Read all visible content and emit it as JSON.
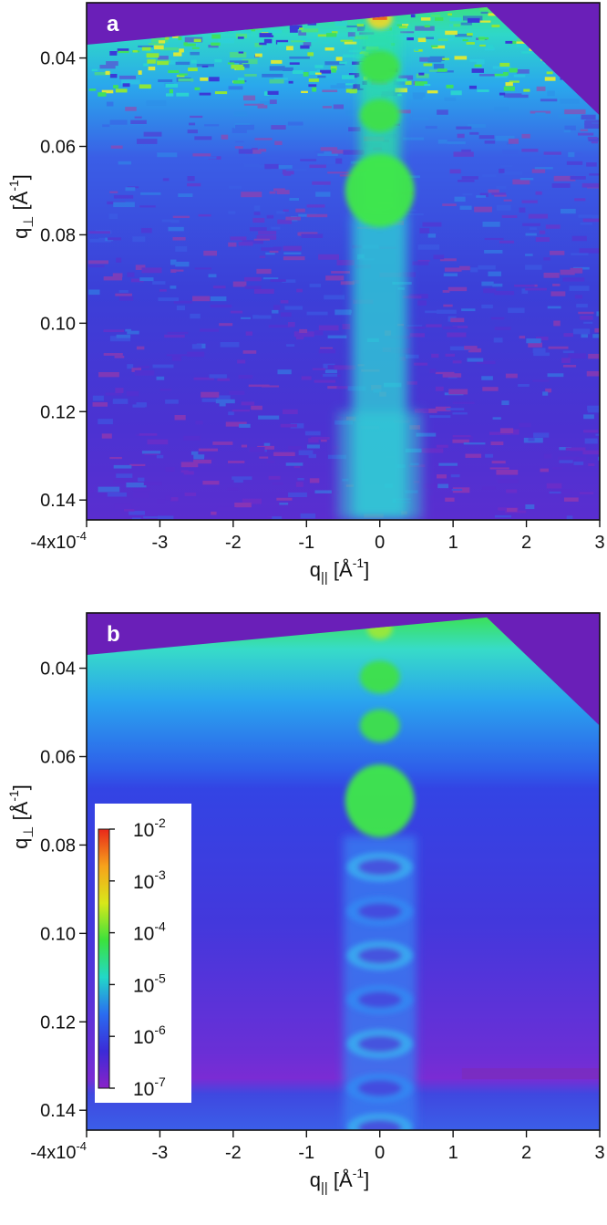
{
  "chart_data": [
    {
      "type": "heatmap",
      "panel_label": "a",
      "xlabel": "q_|| [Å^-1]",
      "ylabel": "q_⊥ [Å^-1]",
      "xlim": [
        -0.0004,
        0.0003
      ],
      "ylim": [
        0.0275,
        0.1445
      ],
      "x_ticks": [
        {
          "value": -0.0004,
          "label": "-4x10"
        },
        {
          "value": -0.0003,
          "label": "-3"
        },
        {
          "value": -0.0002,
          "label": "-2"
        },
        {
          "value": -0.0001,
          "label": "-1"
        },
        {
          "value": 0.0,
          "label": "0"
        },
        {
          "value": 0.0001,
          "label": "1"
        },
        {
          "value": 0.0002,
          "label": "2"
        },
        {
          "value": 0.0003,
          "label": "3"
        }
      ],
      "x_tick_exponent": "-4",
      "y_ticks": [
        {
          "value": 0.04,
          "label": "0.04"
        },
        {
          "value": 0.06,
          "label": "0.06"
        },
        {
          "value": 0.08,
          "label": "0.08"
        },
        {
          "value": 0.1,
          "label": "0.10"
        },
        {
          "value": 0.12,
          "label": "0.12"
        },
        {
          "value": 0.14,
          "label": "0.14"
        }
      ],
      "style": "measured",
      "rod_x": 0.0,
      "peaks_qperp": [
        0.031,
        0.042,
        0.053,
        0.07
      ]
    },
    {
      "type": "heatmap",
      "panel_label": "b",
      "xlabel": "q_|| [Å^-1]",
      "ylabel": "q_⊥ [Å^-1]",
      "xlim": [
        -0.0004,
        0.0003
      ],
      "ylim": [
        0.0275,
        0.1445
      ],
      "x_ticks": [
        {
          "value": -0.0004,
          "label": "-4x10"
        },
        {
          "value": -0.0003,
          "label": "-3"
        },
        {
          "value": -0.0002,
          "label": "-2"
        },
        {
          "value": -0.0001,
          "label": "-1"
        },
        {
          "value": 0.0,
          "label": "0"
        },
        {
          "value": 0.0001,
          "label": "1"
        },
        {
          "value": 0.0002,
          "label": "2"
        },
        {
          "value": 0.0003,
          "label": "3"
        }
      ],
      "x_tick_exponent": "-4",
      "y_ticks": [
        {
          "value": 0.04,
          "label": "0.04"
        },
        {
          "value": 0.06,
          "label": "0.06"
        },
        {
          "value": 0.08,
          "label": "0.08"
        },
        {
          "value": 0.1,
          "label": "0.10"
        },
        {
          "value": 0.12,
          "label": "0.12"
        },
        {
          "value": 0.14,
          "label": "0.14"
        }
      ],
      "style": "simulated",
      "rod_x": 0.0,
      "peaks_qperp": [
        0.031,
        0.042,
        0.053,
        0.07,
        0.085,
        0.095,
        0.105,
        0.115,
        0.125,
        0.135,
        0.144
      ],
      "colorbar": {
        "scale": "log",
        "ticks": [
          {
            "base": "10",
            "exp": "-2"
          },
          {
            "base": "10",
            "exp": "-3"
          },
          {
            "base": "10",
            "exp": "-4"
          },
          {
            "base": "10",
            "exp": "-5"
          },
          {
            "base": "10",
            "exp": "-6"
          },
          {
            "base": "10",
            "exp": "-7"
          }
        ],
        "colors_top_to_bottom": [
          "#e8281a",
          "#f7a21b",
          "#d8e81a",
          "#3ce23c",
          "#22d8c8",
          "#2a6cf0",
          "#3b2bd8",
          "#8a22c8"
        ]
      }
    }
  ],
  "colors": {
    "background_region": "#6a1fb8",
    "low_intensity": "#3b33d8",
    "mid_intensity": "#29c9e6",
    "high_intensity": "#37e04a"
  }
}
